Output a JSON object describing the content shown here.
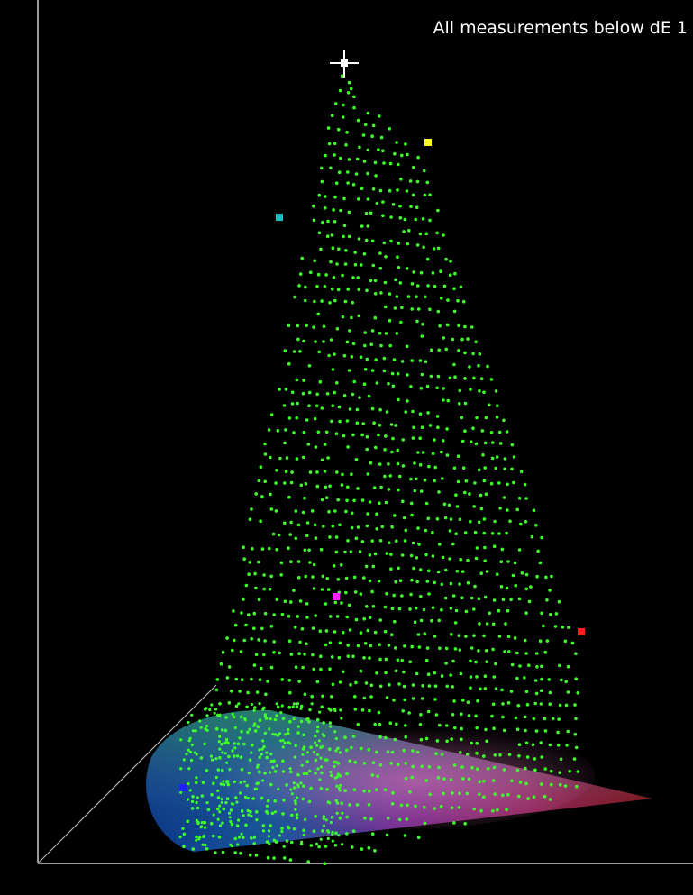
{
  "caption": "All measurements below dE 1",
  "colors": {
    "background": "#000000",
    "measurement_points": "#3fff2a",
    "axes": "#9a9a9a",
    "white_point": "#ffffff",
    "primary_red": "#ff2020",
    "primary_green": "#00ff00",
    "primary_blue": "#2020ff",
    "secondary_cyan": "#20c0c0",
    "secondary_magenta": "#ff20ff",
    "secondary_yellow": "#ffff20"
  },
  "chart_data": {
    "type": "scatter",
    "title": "",
    "subtitle": "",
    "annotations": [
      "All measurements below dE 1"
    ],
    "grid": false,
    "legend": "none",
    "markers": [
      {
        "name": "white",
        "color": "#ffffff"
      },
      {
        "name": "yellow",
        "color": "#ffff20"
      },
      {
        "name": "cyan",
        "color": "#20c0c0"
      },
      {
        "name": "magenta",
        "color": "#ff20ff"
      },
      {
        "name": "red",
        "color": "#ff2020"
      },
      {
        "name": "blue",
        "color": "#2020ff"
      }
    ]
  }
}
